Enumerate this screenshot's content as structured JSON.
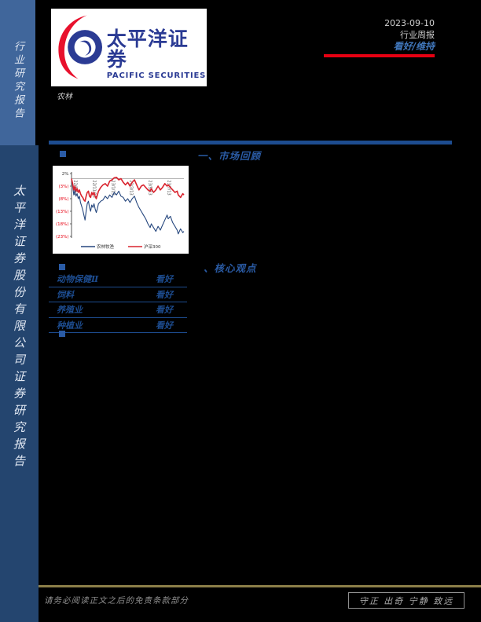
{
  "sidebar": {
    "top_label": "行业研究报告",
    "bottom_label": "太平洋证券股份有限公司证券研究报告"
  },
  "header": {
    "logo_cn": "太平洋证券",
    "logo_en": "PACIFIC SECURITIES",
    "date": "2023-09-10",
    "report_type": "行业周报",
    "rating": "看好/维持",
    "accent_red": "#e60012",
    "rating_color": "#4076ba"
  },
  "industry_label": "农林",
  "sections": [
    {
      "title": "一、市场回顾"
    },
    {
      "title": "、核心观点"
    }
  ],
  "chart_data": {
    "type": "line",
    "title": "",
    "xlabel": "",
    "ylabel": "",
    "ylim": [
      -23,
      2
    ],
    "grid": "zero-line-only",
    "legend_position": "bottom",
    "y_ticks": [
      {
        "label": "2%",
        "value": 2
      },
      {
        "label": "(3%)",
        "value": -3
      },
      {
        "label": "(8%)",
        "value": -8
      },
      {
        "label": "(13%)",
        "value": -13
      },
      {
        "label": "(18%)",
        "value": -18
      },
      {
        "label": "(23%)",
        "value": -23
      }
    ],
    "negative_tick_color": "#e60012",
    "positive_tick_color": "#333333",
    "x_ticks": [
      {
        "label": "22/9/13",
        "f": 0.011
      },
      {
        "label": "22/11/13",
        "f": 0.179
      },
      {
        "label": "23/1/13",
        "f": 0.346
      },
      {
        "label": "23/3/13",
        "f": 0.508
      },
      {
        "label": "23/5/13",
        "f": 0.676
      },
      {
        "label": "23/7/13",
        "f": 0.843
      }
    ],
    "series": [
      {
        "name": "农林牧渔",
        "color": "#26477e",
        "width": 1.1,
        "points": [
          [
            0,
            0
          ],
          [
            0.01,
            -3
          ],
          [
            0.02,
            -6.5
          ],
          [
            0.03,
            -4.5
          ],
          [
            0.04,
            -7
          ],
          [
            0.05,
            -6
          ],
          [
            0.06,
            -8
          ],
          [
            0.07,
            -7
          ],
          [
            0.08,
            -9.5
          ],
          [
            0.09,
            -11
          ],
          [
            0.1,
            -12.5
          ],
          [
            0.11,
            -14.5
          ],
          [
            0.12,
            -16.5
          ],
          [
            0.13,
            -13
          ],
          [
            0.14,
            -10
          ],
          [
            0.15,
            -9
          ],
          [
            0.16,
            -11.5
          ],
          [
            0.17,
            -13
          ],
          [
            0.18,
            -10.5
          ],
          [
            0.19,
            -11.5
          ],
          [
            0.2,
            -10
          ],
          [
            0.21,
            -12
          ],
          [
            0.22,
            -13.5
          ],
          [
            0.23,
            -12
          ],
          [
            0.24,
            -10
          ],
          [
            0.26,
            -9
          ],
          [
            0.28,
            -8.5
          ],
          [
            0.3,
            -7
          ],
          [
            0.32,
            -8
          ],
          [
            0.34,
            -6.5
          ],
          [
            0.36,
            -7.5
          ],
          [
            0.38,
            -5.5
          ],
          [
            0.4,
            -6.5
          ],
          [
            0.42,
            -5
          ],
          [
            0.44,
            -7
          ],
          [
            0.46,
            -7.5
          ],
          [
            0.48,
            -9
          ],
          [
            0.5,
            -8
          ],
          [
            0.52,
            -9.5
          ],
          [
            0.54,
            -8
          ],
          [
            0.56,
            -7
          ],
          [
            0.58,
            -9.5
          ],
          [
            0.6,
            -11.5
          ],
          [
            0.62,
            -13
          ],
          [
            0.64,
            -14.5
          ],
          [
            0.66,
            -16
          ],
          [
            0.68,
            -18
          ],
          [
            0.7,
            -19.5
          ],
          [
            0.71,
            -18
          ],
          [
            0.73,
            -19.5
          ],
          [
            0.75,
            -21
          ],
          [
            0.77,
            -19
          ],
          [
            0.79,
            -20.5
          ],
          [
            0.81,
            -18.5
          ],
          [
            0.83,
            -16.5
          ],
          [
            0.85,
            -14.5
          ],
          [
            0.86,
            -16
          ],
          [
            0.88,
            -15
          ],
          [
            0.9,
            -17.5
          ],
          [
            0.92,
            -19
          ],
          [
            0.94,
            -20.5
          ],
          [
            0.95,
            -22
          ],
          [
            0.97,
            -20
          ],
          [
            0.99,
            -21.5
          ],
          [
            1,
            -21
          ]
        ]
      },
      {
        "name": "沪深300",
        "color": "#d9232e",
        "width": 1.6,
        "points": [
          [
            0,
            0
          ],
          [
            0.01,
            -2
          ],
          [
            0.02,
            -4.5
          ],
          [
            0.03,
            -3
          ],
          [
            0.04,
            -5
          ],
          [
            0.05,
            -4
          ],
          [
            0.06,
            -5.5
          ],
          [
            0.07,
            -4.5
          ],
          [
            0.08,
            -6
          ],
          [
            0.09,
            -7
          ],
          [
            0.1,
            -7.5
          ],
          [
            0.11,
            -8.5
          ],
          [
            0.12,
            -9
          ],
          [
            0.13,
            -7
          ],
          [
            0.14,
            -5.5
          ],
          [
            0.15,
            -5
          ],
          [
            0.16,
            -7
          ],
          [
            0.17,
            -7.5
          ],
          [
            0.18,
            -5.5
          ],
          [
            0.19,
            -6.5
          ],
          [
            0.2,
            -5.5
          ],
          [
            0.21,
            -7
          ],
          [
            0.22,
            -8
          ],
          [
            0.23,
            -6.5
          ],
          [
            0.24,
            -5
          ],
          [
            0.26,
            -3.5
          ],
          [
            0.28,
            -2.5
          ],
          [
            0.3,
            -2
          ],
          [
            0.32,
            -3
          ],
          [
            0.34,
            -1
          ],
          [
            0.36,
            -0.5
          ],
          [
            0.38,
            0.3
          ],
          [
            0.4,
            0.5
          ],
          [
            0.42,
            -0.5
          ],
          [
            0.44,
            0
          ],
          [
            0.46,
            -1.5
          ],
          [
            0.48,
            -2.5
          ],
          [
            0.5,
            -1.5
          ],
          [
            0.52,
            -3
          ],
          [
            0.54,
            -1.5
          ],
          [
            0.56,
            -0.5
          ],
          [
            0.58,
            -2.5
          ],
          [
            0.6,
            -4.5
          ],
          [
            0.62,
            -3
          ],
          [
            0.64,
            -2.5
          ],
          [
            0.66,
            -3.5
          ],
          [
            0.68,
            -4.5
          ],
          [
            0.7,
            -5
          ],
          [
            0.71,
            -4
          ],
          [
            0.73,
            -5.5
          ],
          [
            0.75,
            -4.5
          ],
          [
            0.77,
            -3
          ],
          [
            0.79,
            -4.5
          ],
          [
            0.81,
            -3.5
          ],
          [
            0.83,
            -2
          ],
          [
            0.85,
            -3
          ],
          [
            0.86,
            -2.5
          ],
          [
            0.88,
            -3.5
          ],
          [
            0.9,
            -4.5
          ],
          [
            0.92,
            -5.5
          ],
          [
            0.94,
            -5
          ],
          [
            0.95,
            -6.5
          ],
          [
            0.97,
            -7.5
          ],
          [
            0.99,
            -6
          ],
          [
            1,
            -6.5
          ]
        ]
      }
    ]
  },
  "ratings_table": {
    "rows": [
      {
        "label": "动物保健Ⅱ",
        "value": "看好"
      },
      {
        "label": "饲料",
        "value": "看好"
      },
      {
        "label": "养殖业",
        "value": "看好"
      },
      {
        "label": "种植业",
        "value": "看好"
      }
    ]
  },
  "footer": {
    "disclaimer": "请务必阅读正文之后的免责条款部分",
    "motto": "守正 出奇 宁静 致远",
    "line_color": "#8c7f49"
  }
}
